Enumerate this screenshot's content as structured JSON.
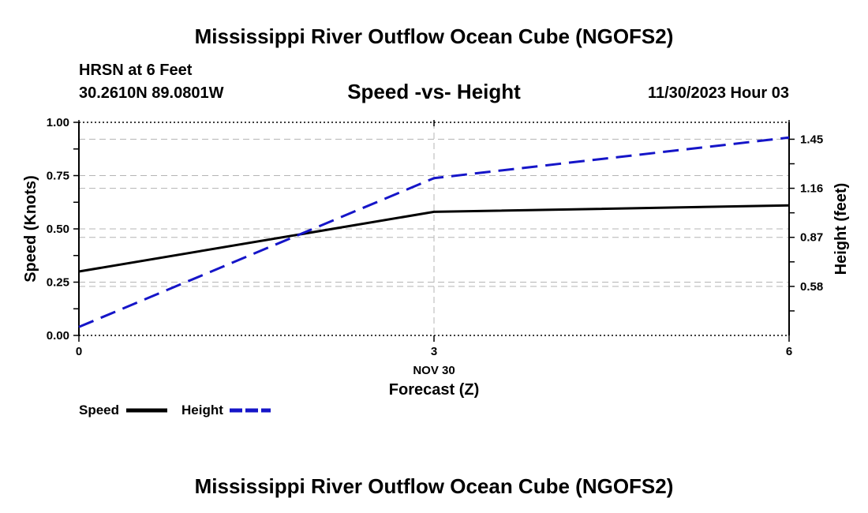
{
  "header": {
    "title": "Mississippi River Outflow Ocean Cube (NGOFS2)",
    "station": "HRSN at 6 Feet",
    "location": "30.2610N  89.0801W",
    "datetime": "11/30/2023 Hour 03"
  },
  "footer": {
    "title": "Mississippi River Outflow Ocean Cube (NGOFS2)"
  },
  "legend": {
    "speed_label": "Speed",
    "height_label": "Height"
  },
  "colors": {
    "speed": "#000000",
    "height": "#1515c8",
    "grid": "#b4b4b4"
  },
  "chart_data": {
    "type": "line",
    "title": "Speed -vs- Height",
    "xlabel": "Forecast (Z)",
    "x_date_label": "NOV 30",
    "x": [
      0,
      3,
      6
    ],
    "xlim": [
      0,
      6
    ],
    "x_ticks": [
      0,
      3,
      6
    ],
    "x_tick_labels": [
      "0",
      "3",
      "6"
    ],
    "ylabel": "Speed (Knots)",
    "ylim": [
      0,
      1.0
    ],
    "y_ticks": [
      0,
      0.25,
      0.5,
      0.75,
      1.0
    ],
    "y_tick_labels": [
      "0.00",
      "0.25",
      "0.50",
      "0.75",
      "1.00"
    ],
    "y2label": "Height (feet)",
    "y2lim": [
      0.29,
      1.55
    ],
    "y2_ticks": [
      0.58,
      0.87,
      1.16,
      1.45
    ],
    "y2_tick_labels": [
      "0.58",
      "0.87",
      "1.16",
      "1.45"
    ],
    "grid": true,
    "series": [
      {
        "name": "Speed",
        "axis": "left",
        "style": "solid",
        "values": [
          0.3,
          0.58,
          0.61
        ]
      },
      {
        "name": "Height",
        "axis": "right",
        "style": "dashed",
        "values": [
          0.34,
          1.22,
          1.46
        ]
      }
    ]
  }
}
